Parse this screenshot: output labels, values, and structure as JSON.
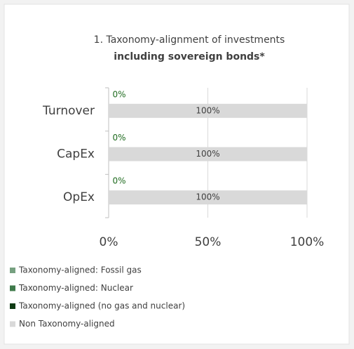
{
  "chart_data": {
    "type": "stacked-barh",
    "title": "1. Taxonomy-alignment of investments",
    "subtitle": "including sovereign bonds*",
    "categories": [
      "Turnover",
      "CapEx",
      "OpEx"
    ],
    "series": [
      {
        "name": "Taxonomy-aligned: Fossil gas",
        "color": "#76a080",
        "values": [
          0,
          0,
          0
        ]
      },
      {
        "name": "Taxonomy-aligned: Nuclear",
        "color": "#3f7a4b",
        "values": [
          0,
          0,
          0
        ]
      },
      {
        "name": "Taxonomy-aligned (no gas and nuclear)",
        "color": "#0f3b14",
        "values": [
          0,
          0,
          0
        ],
        "value_labels": [
          "0%",
          "0%",
          "0%"
        ]
      },
      {
        "name": "Non Taxonomy-aligned",
        "color": "#d9d9d9",
        "values": [
          100,
          100,
          100
        ],
        "value_labels": [
          "100%",
          "100%",
          "100%"
        ]
      }
    ],
    "xlim": [
      0,
      100
    ],
    "xticks": [
      {
        "value": 0,
        "label": "0%"
      },
      {
        "value": 50,
        "label": "50%"
      },
      {
        "value": 100,
        "label": "100%"
      }
    ],
    "grid": true
  }
}
